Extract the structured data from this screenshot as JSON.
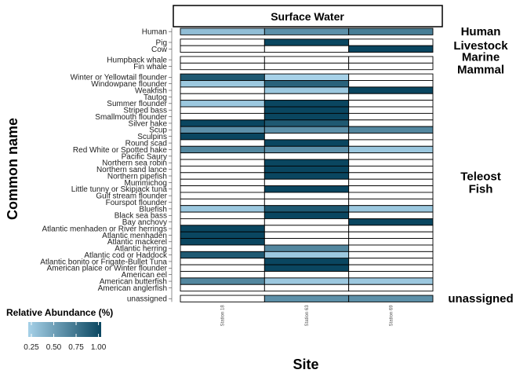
{
  "chart_data": {
    "type": "heatmap",
    "facet_title": "Surface Water",
    "xlabel": "Site",
    "ylabel": "Common name",
    "x": [
      "Station 18",
      "Station 63",
      "Station 69"
    ],
    "legend": {
      "title": "Relative Abundance (%)",
      "ticks": [
        "0.25",
        "0.50",
        "0.75",
        "1.00"
      ],
      "placement": "bottom-left",
      "low_color": "#a6d1e8",
      "high_color": "#0a4660"
    },
    "empty_color": "#ffffff",
    "groups": [
      {
        "name": "Human",
        "rows": [
          {
            "label": "Human",
            "values": [
              0.35,
              0.6,
              0.7
            ]
          }
        ]
      },
      {
        "name": "Livestock",
        "rows": [
          {
            "label": "Pig",
            "values": [
              null,
              1.0,
              null
            ]
          },
          {
            "label": "Cow",
            "values": [
              null,
              null,
              1.0
            ]
          }
        ]
      },
      {
        "name": "Marine Mammal",
        "rows": [
          {
            "label": "Humpback whale",
            "values": [
              null,
              null,
              null
            ]
          },
          {
            "label": "Fin whale",
            "values": [
              null,
              null,
              null
            ]
          }
        ]
      },
      {
        "name": "Teleost Fish",
        "rows": [
          {
            "label": "Winter or Yellowtail flounder",
            "values": [
              0.9,
              0.25,
              null
            ]
          },
          {
            "label": "Windowpane flounder",
            "values": [
              0.3,
              0.85,
              null
            ]
          },
          {
            "label": "Weakfish",
            "values": [
              null,
              0.3,
              1.0
            ]
          },
          {
            "label": "Tautog",
            "values": [
              null,
              null,
              null
            ]
          },
          {
            "label": "Summer flounder",
            "values": [
              0.3,
              1.0,
              null
            ]
          },
          {
            "label": "Striped bass",
            "values": [
              null,
              1.0,
              null
            ]
          },
          {
            "label": "Smallmouth flounder",
            "values": [
              null,
              1.0,
              null
            ]
          },
          {
            "label": "Silver hake",
            "values": [
              1.0,
              0.9,
              null
            ]
          },
          {
            "label": "Scup",
            "values": [
              0.6,
              0.6,
              0.65
            ]
          },
          {
            "label": "Sculpins",
            "values": [
              1.0,
              null,
              null
            ]
          },
          {
            "label": "Round scad",
            "values": [
              null,
              1.0,
              null
            ]
          },
          {
            "label": "Red White or Spotted hake",
            "values": [
              0.65,
              0.6,
              0.3
            ]
          },
          {
            "label": "Pacific Saury",
            "values": [
              null,
              null,
              null
            ]
          },
          {
            "label": "Northern sea robin",
            "values": [
              null,
              1.0,
              null
            ]
          },
          {
            "label": "Northern sand lance",
            "values": [
              null,
              1.0,
              null
            ]
          },
          {
            "label": "Northern pipefish",
            "values": [
              null,
              1.0,
              null
            ]
          },
          {
            "label": "Mummichog",
            "values": [
              null,
              null,
              null
            ]
          },
          {
            "label": "Little tunny or Skipjack tuna",
            "values": [
              null,
              1.0,
              null
            ]
          },
          {
            "label": "Gulf stream flounder",
            "values": [
              null,
              null,
              null
            ]
          },
          {
            "label": "Fourspot flounder",
            "values": [
              null,
              null,
              null
            ]
          },
          {
            "label": "Bluefish",
            "values": [
              0.3,
              0.9,
              0.3
            ]
          },
          {
            "label": "Black sea bass",
            "values": [
              null,
              1.0,
              null
            ]
          },
          {
            "label": "Bay anchovy",
            "values": [
              null,
              null,
              1.0
            ]
          },
          {
            "label": "Atlantic menhaden or River herrings",
            "values": [
              1.0,
              null,
              null
            ]
          },
          {
            "label": "Atlantic menhaden",
            "values": [
              1.0,
              null,
              null
            ]
          },
          {
            "label": "Atlantic mackerel",
            "values": [
              1.0,
              null,
              null
            ]
          },
          {
            "label": "Atlantic herring",
            "values": [
              null,
              0.65,
              null
            ]
          },
          {
            "label": "Atlantic cod or Haddock",
            "values": [
              0.9,
              0.3,
              null
            ]
          },
          {
            "label": "Atlantic bonito or Frigate-Bullet Tuna",
            "values": [
              null,
              1.0,
              null
            ]
          },
          {
            "label": "American plaice or Winter flounder",
            "values": [
              null,
              1.0,
              null
            ]
          },
          {
            "label": "American eel",
            "values": [
              null,
              null,
              null
            ]
          },
          {
            "label": "American butterfish",
            "values": [
              0.65,
              0.3,
              0.3
            ]
          },
          {
            "label": "American anglerfish",
            "values": [
              null,
              null,
              null
            ]
          }
        ]
      },
      {
        "name": "unassigned",
        "rows": [
          {
            "label": "unassigned",
            "values": [
              null,
              0.6,
              0.6
            ]
          }
        ]
      }
    ]
  }
}
